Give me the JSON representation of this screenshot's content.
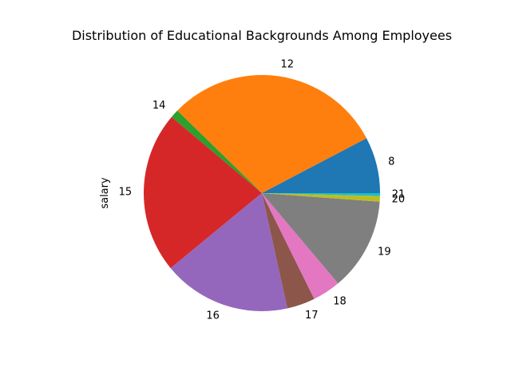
{
  "chart_data": {
    "type": "pie",
    "title": "Distribution of Educational Backgrounds Among Employees",
    "ylabel": "salary",
    "categories": [
      "8",
      "12",
      "14",
      "15",
      "16",
      "17",
      "18",
      "19",
      "20",
      "21"
    ],
    "values": [
      8.0,
      31.2,
      1.2,
      23.0,
      18.2,
      4.0,
      4.0,
      13.2,
      0.8,
      0.4
    ],
    "colors": [
      "#1f77b4",
      "#ff7f0e",
      "#2ca02c",
      "#d62728",
      "#9467bd",
      "#8c564b",
      "#e377c2",
      "#7f7f7f",
      "#bcbd22",
      "#17becf"
    ],
    "start_angle_deg": 0,
    "direction": "counterclockwise",
    "legend": "none"
  }
}
